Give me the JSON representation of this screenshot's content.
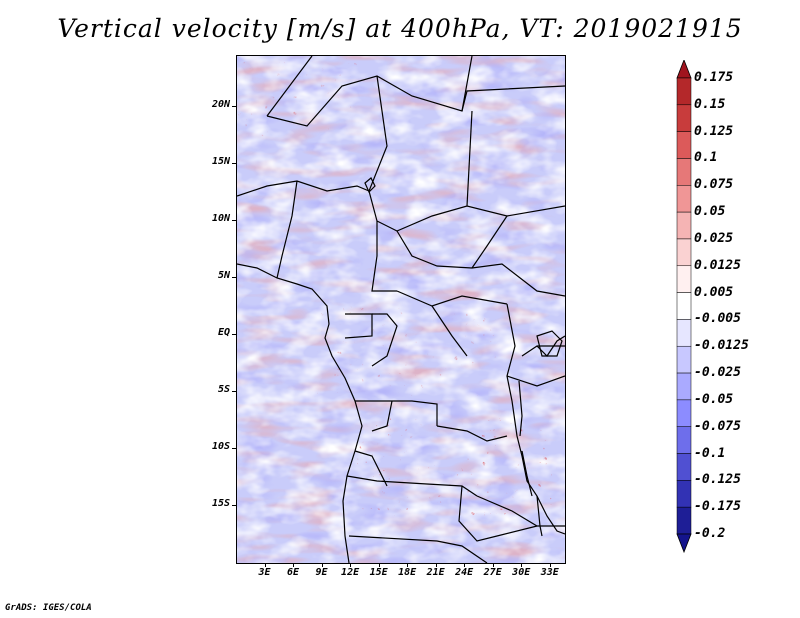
{
  "title": "Vertical velocity [m/s] at 400hPa, VT: 2019021915",
  "footer": "GrADS: IGES/COLA",
  "lat_labels": [
    "20N",
    "15N",
    "10N",
    "5N",
    "EQ",
    "5S",
    "10S",
    "15S"
  ],
  "lon_labels": [
    "3E",
    "6E",
    "9E",
    "12E",
    "15E",
    "18E",
    "21E",
    "24E",
    "27E",
    "30E",
    "33E"
  ],
  "colorbar": {
    "levels": [
      "0.175",
      "0.15",
      "0.125",
      "0.1",
      "0.075",
      "0.05",
      "0.025",
      "0.0125",
      "0.005",
      "-0.005",
      "-0.0125",
      "-0.025",
      "-0.05",
      "-0.075",
      "-0.1",
      "-0.125",
      "-0.175",
      "-0.2"
    ],
    "colors": [
      "#a0141e",
      "#b4282a",
      "#c83c3c",
      "#dc5a5a",
      "#e67878",
      "#f09696",
      "#f5b4b4",
      "#fad2d2",
      "#fff0f0",
      "#ffffff",
      "#e6e6ff",
      "#c8c8ff",
      "#aaaaff",
      "#8c8cff",
      "#6e6eeb",
      "#5050d2",
      "#3232b4",
      "#1e1e96",
      "#14148c"
    ]
  },
  "chart_data": {
    "type": "heatmap",
    "title": "Vertical velocity [m/s] at 400hPa, VT: 2019021915",
    "variable": "Vertical velocity",
    "units": "m/s",
    "level": "400hPa",
    "valid_time": "2019021915",
    "lon_range": [
      0,
      34.5
    ],
    "lat_range": [
      -20,
      24.5
    ],
    "xticks": [
      "3E",
      "6E",
      "9E",
      "12E",
      "15E",
      "18E",
      "21E",
      "24E",
      "27E",
      "30E",
      "33E"
    ],
    "yticks": [
      "20N",
      "15N",
      "10N",
      "5N",
      "EQ",
      "5S",
      "10S",
      "15S"
    ]
  }
}
